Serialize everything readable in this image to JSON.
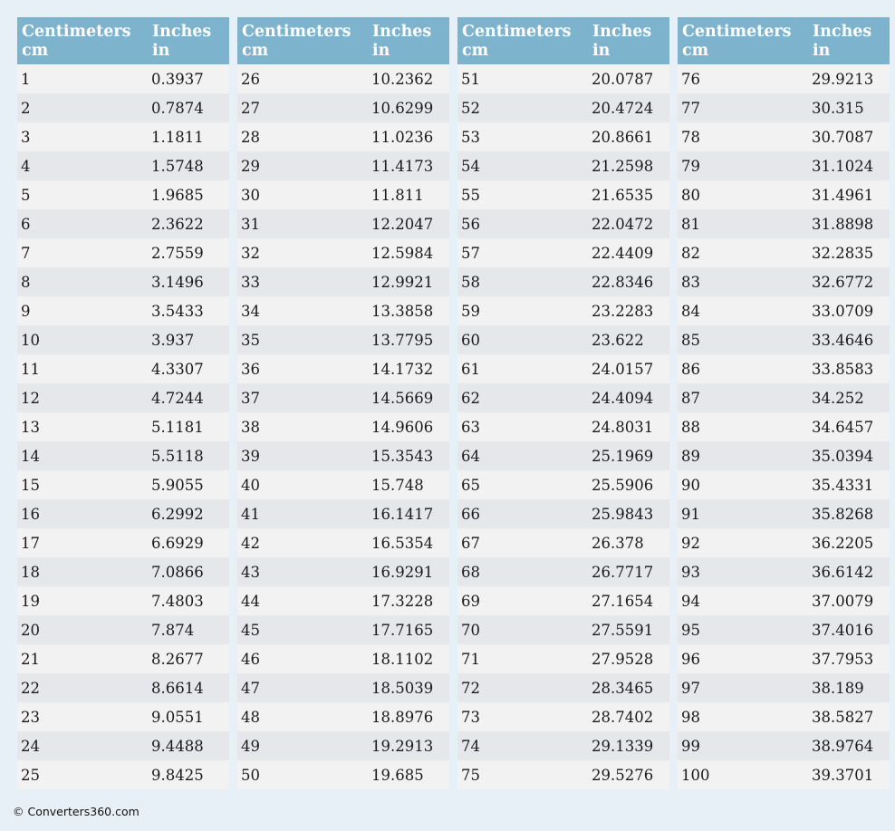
{
  "header": {
    "col1_title": "Centimeters",
    "col1_unit": "cm",
    "col2_title": "Inches",
    "col2_unit": "in"
  },
  "tables": [
    {
      "rows": [
        [
          "1",
          "0.3937"
        ],
        [
          "2",
          "0.7874"
        ],
        [
          "3",
          "1.1811"
        ],
        [
          "4",
          "1.5748"
        ],
        [
          "5",
          "1.9685"
        ],
        [
          "6",
          "2.3622"
        ],
        [
          "7",
          "2.7559"
        ],
        [
          "8",
          "3.1496"
        ],
        [
          "9",
          "3.5433"
        ],
        [
          "10",
          "3.937"
        ],
        [
          "11",
          "4.3307"
        ],
        [
          "12",
          "4.7244"
        ],
        [
          "13",
          "5.1181"
        ],
        [
          "14",
          "5.5118"
        ],
        [
          "15",
          "5.9055"
        ],
        [
          "16",
          "6.2992"
        ],
        [
          "17",
          "6.6929"
        ],
        [
          "18",
          "7.0866"
        ],
        [
          "19",
          "7.4803"
        ],
        [
          "20",
          "7.874"
        ],
        [
          "21",
          "8.2677"
        ],
        [
          "22",
          "8.6614"
        ],
        [
          "23",
          "9.0551"
        ],
        [
          "24",
          "9.4488"
        ],
        [
          "25",
          "9.8425"
        ]
      ]
    },
    {
      "rows": [
        [
          "26",
          "10.2362"
        ],
        [
          "27",
          "10.6299"
        ],
        [
          "28",
          "11.0236"
        ],
        [
          "29",
          "11.4173"
        ],
        [
          "30",
          "11.811"
        ],
        [
          "31",
          "12.2047"
        ],
        [
          "32",
          "12.5984"
        ],
        [
          "33",
          "12.9921"
        ],
        [
          "34",
          "13.3858"
        ],
        [
          "35",
          "13.7795"
        ],
        [
          "36",
          "14.1732"
        ],
        [
          "37",
          "14.5669"
        ],
        [
          "38",
          "14.9606"
        ],
        [
          "39",
          "15.3543"
        ],
        [
          "40",
          "15.748"
        ],
        [
          "41",
          "16.1417"
        ],
        [
          "42",
          "16.5354"
        ],
        [
          "43",
          "16.9291"
        ],
        [
          "44",
          "17.3228"
        ],
        [
          "45",
          "17.7165"
        ],
        [
          "46",
          "18.1102"
        ],
        [
          "47",
          "18.5039"
        ],
        [
          "48",
          "18.8976"
        ],
        [
          "49",
          "19.2913"
        ],
        [
          "50",
          "19.685"
        ]
      ]
    },
    {
      "rows": [
        [
          "51",
          "20.0787"
        ],
        [
          "52",
          "20.4724"
        ],
        [
          "53",
          "20.8661"
        ],
        [
          "54",
          "21.2598"
        ],
        [
          "55",
          "21.6535"
        ],
        [
          "56",
          "22.0472"
        ],
        [
          "57",
          "22.4409"
        ],
        [
          "58",
          "22.8346"
        ],
        [
          "59",
          "23.2283"
        ],
        [
          "60",
          "23.622"
        ],
        [
          "61",
          "24.0157"
        ],
        [
          "62",
          "24.4094"
        ],
        [
          "63",
          "24.8031"
        ],
        [
          "64",
          "25.1969"
        ],
        [
          "65",
          "25.5906"
        ],
        [
          "66",
          "25.9843"
        ],
        [
          "67",
          "26.378"
        ],
        [
          "68",
          "26.7717"
        ],
        [
          "69",
          "27.1654"
        ],
        [
          "70",
          "27.5591"
        ],
        [
          "71",
          "27.9528"
        ],
        [
          "72",
          "28.3465"
        ],
        [
          "73",
          "28.7402"
        ],
        [
          "74",
          "29.1339"
        ],
        [
          "75",
          "29.5276"
        ]
      ]
    },
    {
      "rows": [
        [
          "76",
          "29.9213"
        ],
        [
          "77",
          "30.315"
        ],
        [
          "78",
          "30.7087"
        ],
        [
          "79",
          "31.1024"
        ],
        [
          "80",
          "31.4961"
        ],
        [
          "81",
          "31.8898"
        ],
        [
          "82",
          "32.2835"
        ],
        [
          "83",
          "32.6772"
        ],
        [
          "84",
          "33.0709"
        ],
        [
          "85",
          "33.4646"
        ],
        [
          "86",
          "33.8583"
        ],
        [
          "87",
          "34.252"
        ],
        [
          "88",
          "34.6457"
        ],
        [
          "89",
          "35.0394"
        ],
        [
          "90",
          "35.4331"
        ],
        [
          "91",
          "35.8268"
        ],
        [
          "92",
          "36.2205"
        ],
        [
          "93",
          "36.6142"
        ],
        [
          "94",
          "37.0079"
        ],
        [
          "95",
          "37.4016"
        ],
        [
          "96",
          "37.7953"
        ],
        [
          "97",
          "38.189"
        ],
        [
          "98",
          "38.5827"
        ],
        [
          "99",
          "38.9764"
        ],
        [
          "100",
          "39.3701"
        ]
      ]
    }
  ],
  "footer": {
    "copyright": "© Converters360.com"
  }
}
